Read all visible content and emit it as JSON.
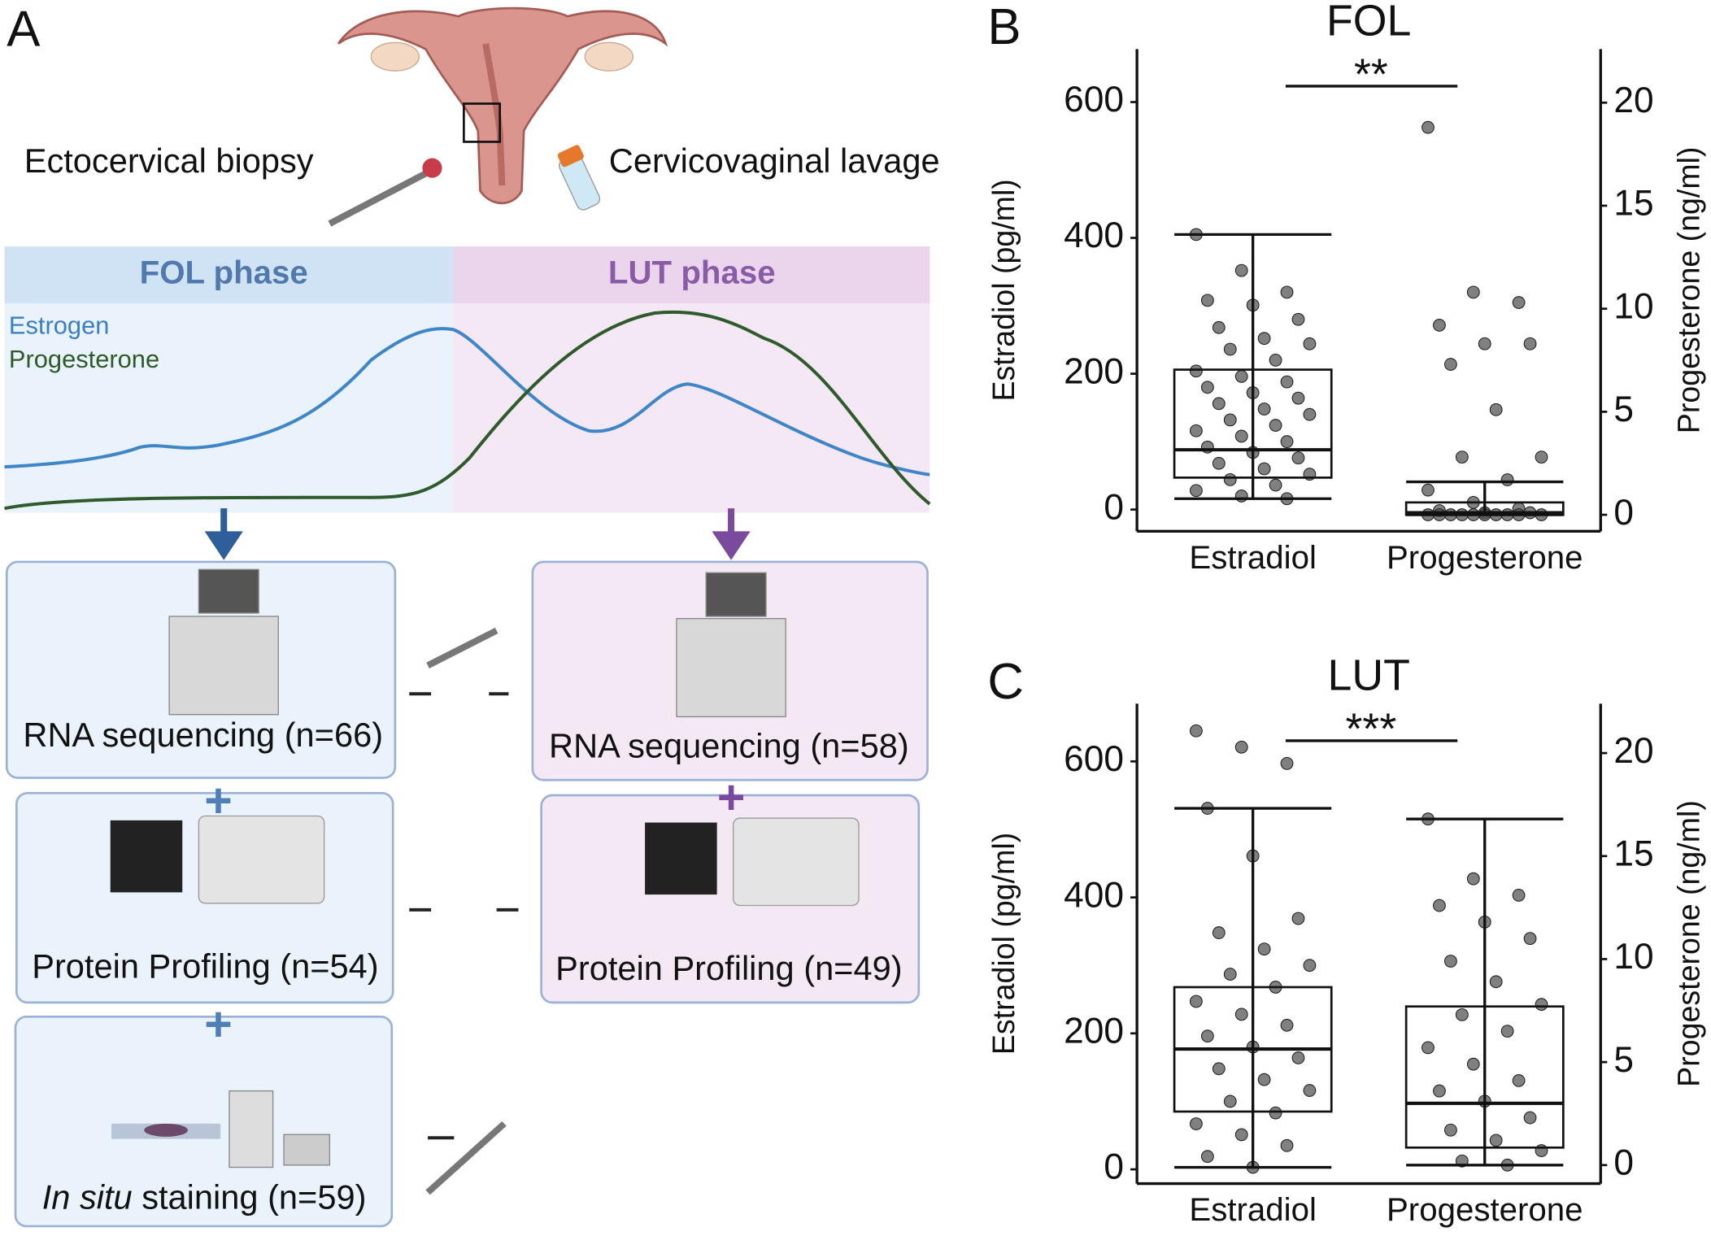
{
  "diagram": {
    "label": "A",
    "sampling": {
      "biopsy": "Ectocervical biopsy",
      "lavage": "Cervicovaginal lavage"
    },
    "phases": [
      "FOL phase",
      "LUT phase"
    ],
    "hormones": [
      "Estrogen",
      "Progesterone"
    ],
    "fol_assays": [
      "RNA sequencing (n=66)",
      "Protein Profiling (n=54)",
      {
        "italic": "In situ",
        "text": " staining (n=59)"
      }
    ],
    "lut_assays": [
      "RNA sequencing (n=58)",
      "Protein Profiling (n=49)"
    ]
  },
  "chart_data": [
    {
      "type": "box",
      "panel": "B",
      "title": "FOL",
      "annotation": "**",
      "categories": [
        "Estradiol",
        "Progesterone"
      ],
      "ylabel": "Estradiol (pg/ml)",
      "y2label": "Progesterone (ng/ml)",
      "ylim": [
        -32,
        678
      ],
      "yticks": [
        0,
        200,
        400,
        600
      ],
      "y2lim": [
        -0.8,
        22.6
      ],
      "y2ticks": [
        0,
        5,
        10,
        15,
        20
      ],
      "series": [
        {
          "axis": "y",
          "color": "#555555",
          "whislo": 16,
          "q1": 47,
          "med": 88,
          "q3": 206,
          "whishi": 405,
          "points": [
            405,
            352,
            320,
            308,
            301,
            280,
            268,
            252,
            244,
            236,
            220,
            204,
            196,
            188,
            180,
            172,
            164,
            156,
            148,
            140,
            132,
            124,
            116,
            108,
            100,
            92,
            84,
            76,
            68,
            60,
            52,
            44,
            36,
            28,
            20,
            16
          ]
        },
        {
          "axis": "y2",
          "color": "#555555",
          "whislo": 0,
          "q1": 0,
          "med": 0.1,
          "q3": 0.6,
          "whishi": 1.6,
          "points": [
            18.8,
            10.8,
            10.3,
            9.2,
            8.3,
            8.3,
            7.3,
            5.1,
            2.8,
            2.8,
            1.7,
            1.2,
            0.6,
            0.3,
            0.2,
            0.1,
            0.1,
            0,
            0,
            0,
            0,
            0,
            0,
            0,
            0,
            0,
            0
          ]
        }
      ]
    },
    {
      "type": "box",
      "panel": "C",
      "title": "LUT",
      "annotation": "***",
      "categories": [
        "Estradiol",
        "Progesterone"
      ],
      "ylabel": "Estradiol (pg/ml)",
      "y2label": "Progesterone (ng/ml)",
      "ylim": [
        -21,
        685
      ],
      "yticks": [
        0,
        200,
        400,
        600
      ],
      "y2lim": [
        -0.9,
        22.4
      ],
      "y2ticks": [
        0,
        5,
        10,
        15,
        20
      ],
      "series": [
        {
          "axis": "y",
          "color": "#555555",
          "whislo": 3,
          "q1": 85,
          "med": 177,
          "q3": 268,
          "whishi": 531,
          "points": [
            645,
            621,
            597,
            531,
            461,
            369,
            348,
            324,
            300,
            287,
            268,
            247,
            228,
            212,
            196,
            180,
            164,
            148,
            132,
            116,
            100,
            83,
            67,
            51,
            35,
            19,
            3
          ]
        },
        {
          "axis": "y2",
          "color": "#555555",
          "whislo": 0,
          "q1": 0.85,
          "med": 3.0,
          "q3": 7.7,
          "whishi": 16.8,
          "points": [
            16.8,
            13.9,
            13.1,
            12.6,
            11.8,
            11.0,
            9.9,
            8.9,
            7.8,
            7.3,
            6.5,
            5.7,
            4.9,
            4.1,
            3.6,
            3.1,
            2.3,
            1.7,
            1.2,
            0.7,
            0.2,
            0
          ]
        }
      ]
    }
  ]
}
